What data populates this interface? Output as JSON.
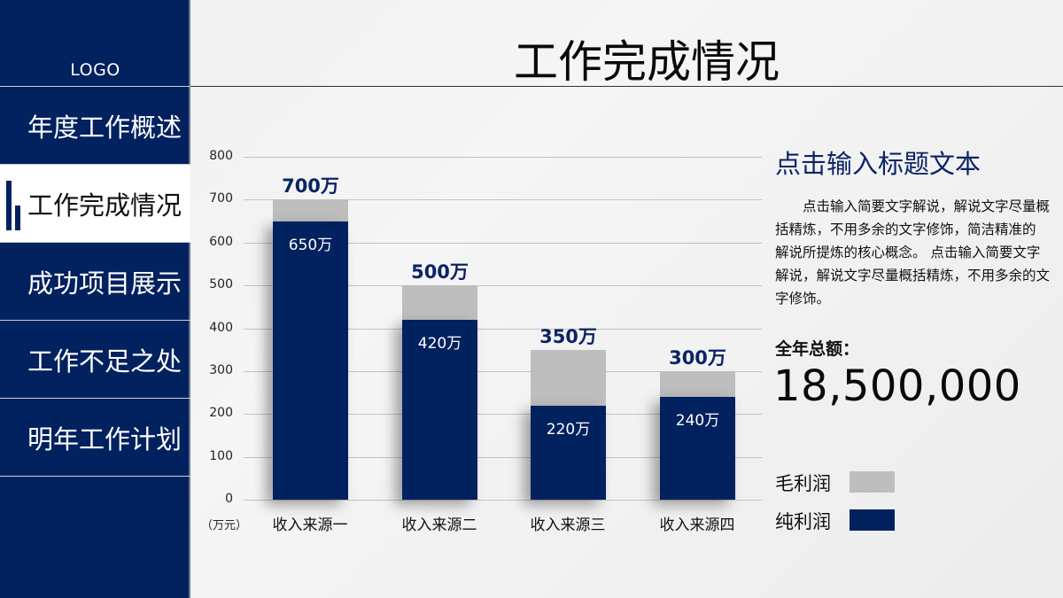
{
  "sidebar": {
    "logo": "LOGO",
    "items": [
      {
        "label": "年度工作概述",
        "active": false
      },
      {
        "label": "工作完成情况",
        "active": true
      },
      {
        "label": "成功项目展示",
        "active": false
      },
      {
        "label": "工作不足之处",
        "active": false
      },
      {
        "label": "明年工作计划",
        "active": false
      }
    ]
  },
  "header": {
    "title": "工作完成情况"
  },
  "panel": {
    "title": "点击输入标题文本",
    "body": "点击输入简要文字解说，解说文字尽量概括精炼，不用多余的文字修饰，简洁精准的 解说所提炼的核心概念。 点击输入简要文字解说，解说文字尽量概括精炼，不用多余的文字修饰。",
    "total_label": "全年总额：",
    "total_value": "18,500,000"
  },
  "legend": [
    {
      "label": "毛利润",
      "color": "#bebebe"
    },
    {
      "label": "纯利润",
      "color": "#02215f"
    }
  ],
  "chart_data": {
    "type": "bar",
    "stacked": "overlay",
    "title": "",
    "xlabel": "",
    "ylabel": "（万元）",
    "ylim": [
      0,
      800
    ],
    "yticks": [
      "0",
      "100",
      "200",
      "300",
      "400",
      "500",
      "600",
      "700",
      "800"
    ],
    "grid": true,
    "legend_position": "right",
    "categories": [
      "收入来源一",
      "收入来源二",
      "收入来源三",
      "收入来源四"
    ],
    "series": [
      {
        "name": "毛利润",
        "color": "#bebebe",
        "values": [
          700,
          500,
          350,
          300
        ],
        "labels": [
          "700万",
          "500万",
          "350万",
          "300万"
        ]
      },
      {
        "name": "纯利润",
        "color": "#02215f",
        "values": [
          650,
          420,
          220,
          240
        ],
        "labels": [
          "650万",
          "420万",
          "220万",
          "240万"
        ]
      }
    ]
  }
}
